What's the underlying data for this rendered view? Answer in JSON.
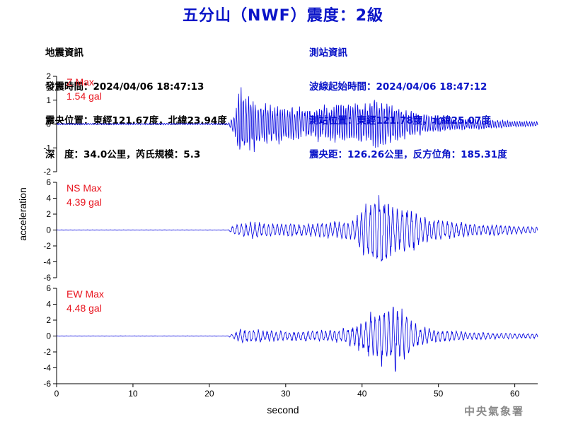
{
  "header": {
    "title": "五分山（NWF）震度：2級"
  },
  "quake_info": {
    "heading": "地震資訊",
    "origin_time": "發震時間：2024/04/06 18:47:13",
    "epicenter": "震央位置：東經121.67度，北緯23.94度",
    "depth_magnitude": "深　度：34.0公里，芮氏規模：5.3"
  },
  "station_info": {
    "heading": "測站資訊",
    "wave_start": "波線起始時間：2024/04/06 18:47:12",
    "station_location": "測站位置：東經121.78度，北緯25.07度",
    "distance_azimuth": "震央距：126.26公里，反方位角：185.31度"
  },
  "chart_data": {
    "type": "line",
    "xlabel": "second",
    "ylabel": "acceleration",
    "xlim": [
      0,
      63
    ],
    "x_ticks": [
      "0",
      "10",
      "20",
      "30",
      "40",
      "50",
      "60"
    ],
    "line_color": "#0000e0",
    "series": [
      {
        "name": "Z",
        "max_label": "Z Max",
        "max_value": "1.54 gal",
        "peak": 1.54,
        "ylim": [
          -2,
          2
        ],
        "y_ticks": [
          "2",
          "1",
          "0",
          "-1",
          "-2"
        ],
        "envelope": [
          [
            0,
            0.03
          ],
          [
            22.5,
            0.03
          ],
          [
            23.2,
            0.3
          ],
          [
            24,
            1.2
          ],
          [
            25,
            1.0
          ],
          [
            27,
            0.7
          ],
          [
            30,
            0.6
          ],
          [
            33,
            0.5
          ],
          [
            36,
            0.6
          ],
          [
            38,
            0.7
          ],
          [
            40,
            0.6
          ],
          [
            42,
            0.8
          ],
          [
            43,
            0.7
          ],
          [
            45,
            0.6
          ],
          [
            47,
            0.4
          ],
          [
            50,
            0.25
          ],
          [
            55,
            0.18
          ],
          [
            60,
            0.1
          ],
          [
            63,
            0.08
          ]
        ]
      },
      {
        "name": "NS",
        "max_label": "NS Max",
        "max_value": "4.39 gal",
        "peak": 4.39,
        "ylim": [
          -6,
          6
        ],
        "y_ticks": [
          "6",
          "4",
          "2",
          "0",
          "-2",
          "-4",
          "-6"
        ],
        "envelope": [
          [
            0,
            0.02
          ],
          [
            22.5,
            0.02
          ],
          [
            23,
            0.5
          ],
          [
            25,
            0.8
          ],
          [
            28,
            0.7
          ],
          [
            32,
            0.6
          ],
          [
            36,
            0.8
          ],
          [
            39,
            1.0
          ],
          [
            40,
            2.5
          ],
          [
            41,
            3.0
          ],
          [
            42,
            3.6
          ],
          [
            43,
            3.8
          ],
          [
            44,
            3.0
          ],
          [
            45,
            2.2
          ],
          [
            46,
            2.4
          ],
          [
            47,
            1.8
          ],
          [
            48,
            1.4
          ],
          [
            50,
            1.0
          ],
          [
            55,
            0.6
          ],
          [
            60,
            0.45
          ],
          [
            63,
            0.35
          ]
        ]
      },
      {
        "name": "EW",
        "max_label": "EW Max",
        "max_value": "4.48 gal",
        "peak": 4.48,
        "ylim": [
          -6,
          6
        ],
        "y_ticks": [
          "6",
          "4",
          "2",
          "0",
          "-2",
          "-4",
          "-6"
        ],
        "envelope": [
          [
            0,
            0.02
          ],
          [
            22.5,
            0.02
          ],
          [
            23,
            0.3
          ],
          [
            24,
            0.8
          ],
          [
            26,
            0.7
          ],
          [
            28,
            0.6
          ],
          [
            31,
            0.5
          ],
          [
            34,
            0.6
          ],
          [
            37,
            0.7
          ],
          [
            39,
            1.2
          ],
          [
            41,
            2.4
          ],
          [
            42,
            2.8
          ],
          [
            43,
            3.2
          ],
          [
            44,
            3.8
          ],
          [
            45,
            3.0
          ],
          [
            46,
            2.2
          ],
          [
            47,
            1.4
          ],
          [
            48,
            1.0
          ],
          [
            50,
            0.7
          ],
          [
            55,
            0.4
          ],
          [
            60,
            0.3
          ],
          [
            63,
            0.25
          ]
        ]
      }
    ]
  },
  "footer": {
    "credit": "中央氣象署"
  }
}
